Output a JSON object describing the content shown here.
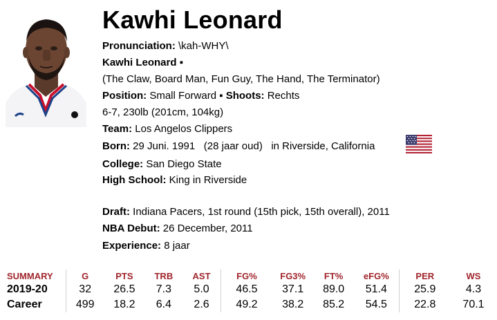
{
  "player": {
    "name": "Kawhi Leonard",
    "pronunciation_label": "Pronunciation:",
    "pronunciation_value": "\\kah-WHY\\",
    "fullname": "Kawhi Leonard",
    "bullet": "▪",
    "nicknames": "(The Claw, Board Man, Fun Guy, The Hand, The Terminator)",
    "position_label": "Position:",
    "position_value": "Small Forward",
    "shoots_label": "Shoots:",
    "shoots_value": "Rechts",
    "size": "6-7, 230lb (201cm, 104kg)",
    "team_label": "Team:",
    "team_value": "Los Angelos Clippers",
    "born_label": "Born:",
    "born_date": "29 Juni. 1991",
    "born_age": "(28 jaar oud)",
    "born_in": "in Riverside,",
    "born_state": "California",
    "college_label": "College:",
    "college_value": "San Diego State",
    "highschool_label": "High School:",
    "highschool_value": "King in Riverside",
    "draft_label": "Draft:",
    "draft_value": "Indiana Pacers,  1st round (15th pick, 15th overall),",
    "draft_year": "2011",
    "debut_label": "NBA Debut:",
    "debut_value": "26 December, 2011",
    "experience_label": "Experience:",
    "experience_value": "8 jaar",
    "flag_icon": "us-flag-icon"
  },
  "stats": {
    "headers": [
      "SUMMARY",
      "G",
      "PTS",
      "TRB",
      "AST",
      "FG%",
      "FG3%",
      "FT%",
      "eFG%",
      "PER",
      "WS"
    ],
    "rows": [
      [
        "2019-20",
        "32",
        "26.5",
        "7.3",
        "5.0",
        "46.5",
        "37.1",
        "89.0",
        "51.4",
        "25.9",
        "4.3"
      ],
      [
        "Career",
        "499",
        "18.2",
        "6.4",
        "2.6",
        "49.2",
        "38.2",
        "85.2",
        "54.5",
        "22.8",
        "70.1"
      ]
    ],
    "header_color": "#a0252c"
  }
}
